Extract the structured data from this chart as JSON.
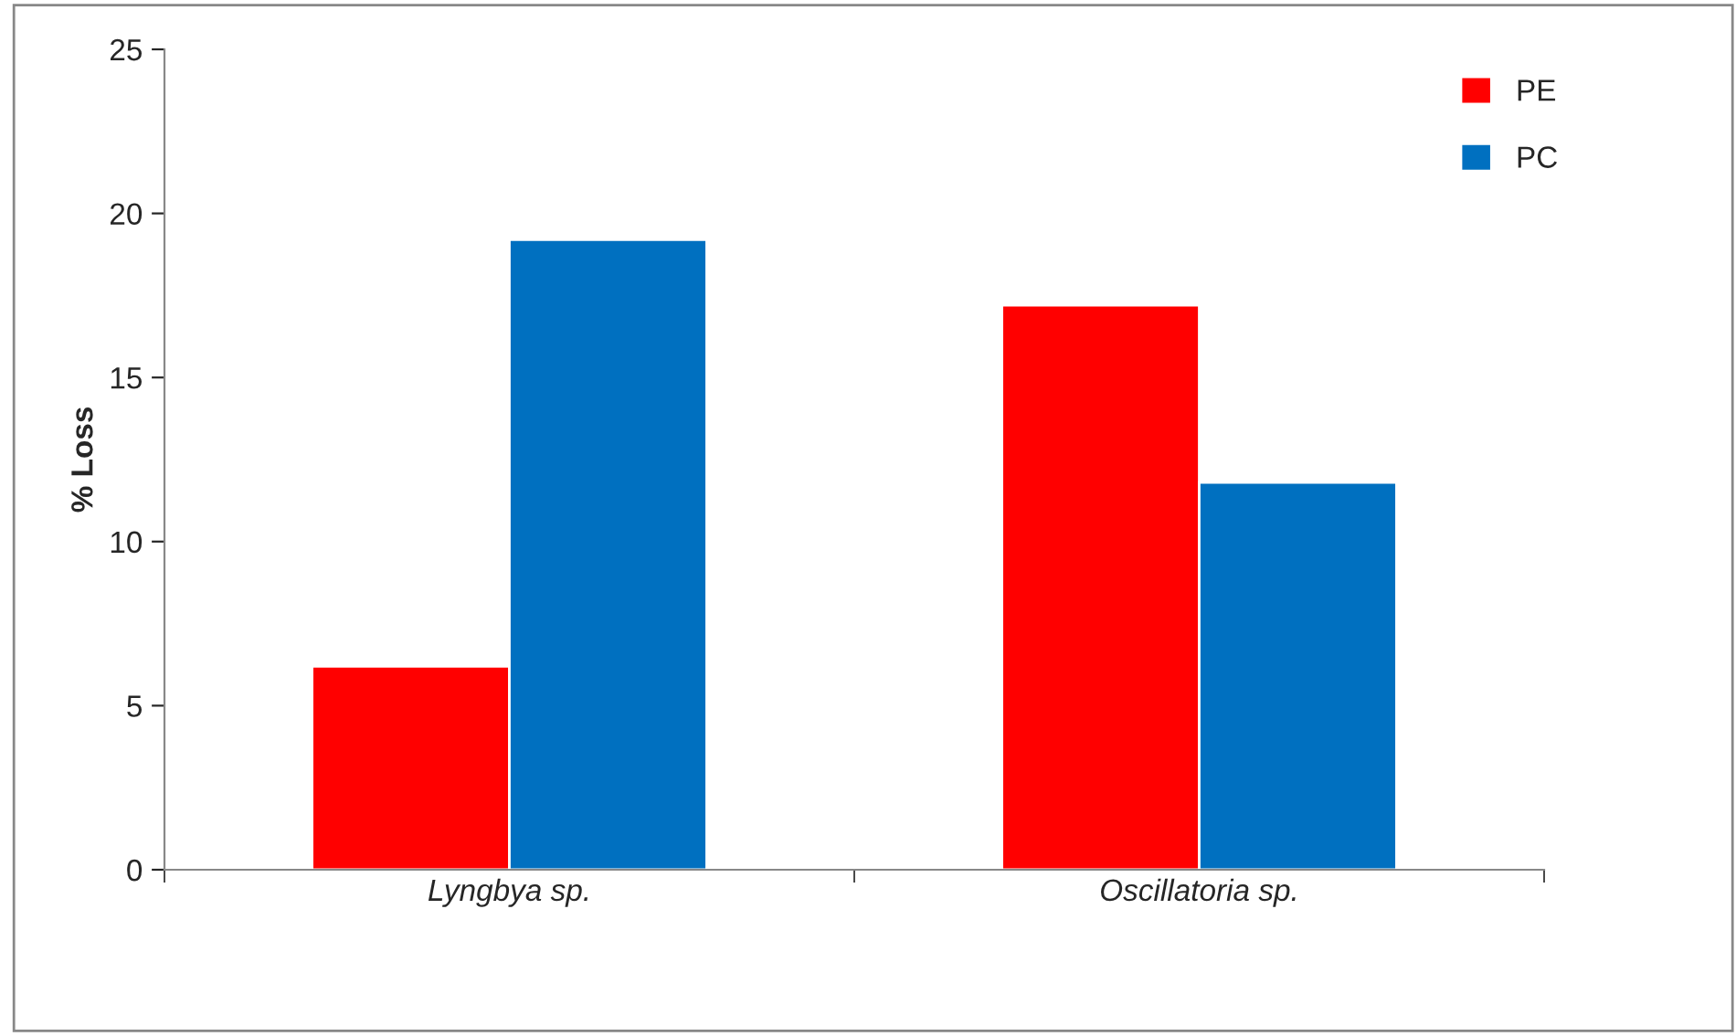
{
  "chart_data": {
    "type": "bar",
    "ylabel": "% Loss",
    "categories": [
      "Lyngbya sp.",
      "Oscillatoria sp."
    ],
    "series": [
      {
        "name": "PE",
        "color": "#ff0000",
        "values": [
          6.2,
          17.2
        ]
      },
      {
        "name": "PC",
        "color": "#0070c0",
        "values": [
          19.2,
          11.8
        ]
      }
    ],
    "ylim": [
      0,
      25
    ],
    "yticks": [
      0,
      5,
      10,
      15,
      20,
      25
    ],
    "grid": false,
    "legend": "top right"
  }
}
